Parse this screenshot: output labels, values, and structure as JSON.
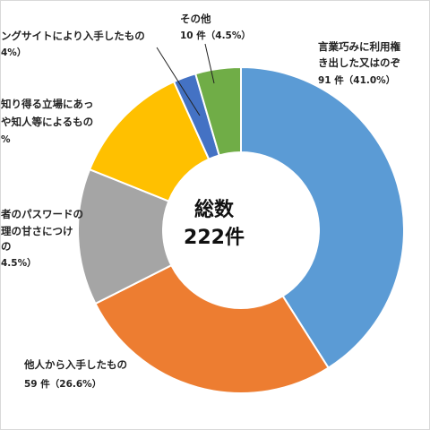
{
  "chart_data": {
    "type": "pie",
    "center_text": {
      "line1": "総数",
      "line2": "222件"
    },
    "total": 222,
    "series": [
      {
        "label_lines": [
          "言業巧みに利用権",
          "き出した又はのぞ"
        ],
        "count_text": "91 件（41.0%）",
        "value": 91,
        "percent": 41.0,
        "color": "#5b9bd5"
      },
      {
        "label_lines": [
          "他人から入手したもの"
        ],
        "count_text": "59 件（26.6%）",
        "value": 59,
        "percent": 26.6,
        "color": "#ed7d31"
      },
      {
        "label_lines": [
          "者のパスワードの",
          "理の甘さにつけ",
          "の"
        ],
        "count_text": "4.5%）",
        "value": 30,
        "percent": 13.5,
        "color": "#a5a5a5"
      },
      {
        "label_lines": [
          "知り得る立場にあっ",
          "や知人等によるもの"
        ],
        "count_text": "%",
        "value": 27,
        "percent": 12.2,
        "color": "#ffc000"
      },
      {
        "label_lines": [
          "ングサイトにより入手したもの"
        ],
        "count_text": "4%）",
        "value": 5,
        "percent": 2.3,
        "color": "#4472c4"
      },
      {
        "label_lines": [
          "その他"
        ],
        "count_text": "10 件（4.5%）",
        "value": 10,
        "percent": 4.5,
        "color": "#70ad47"
      }
    ]
  }
}
